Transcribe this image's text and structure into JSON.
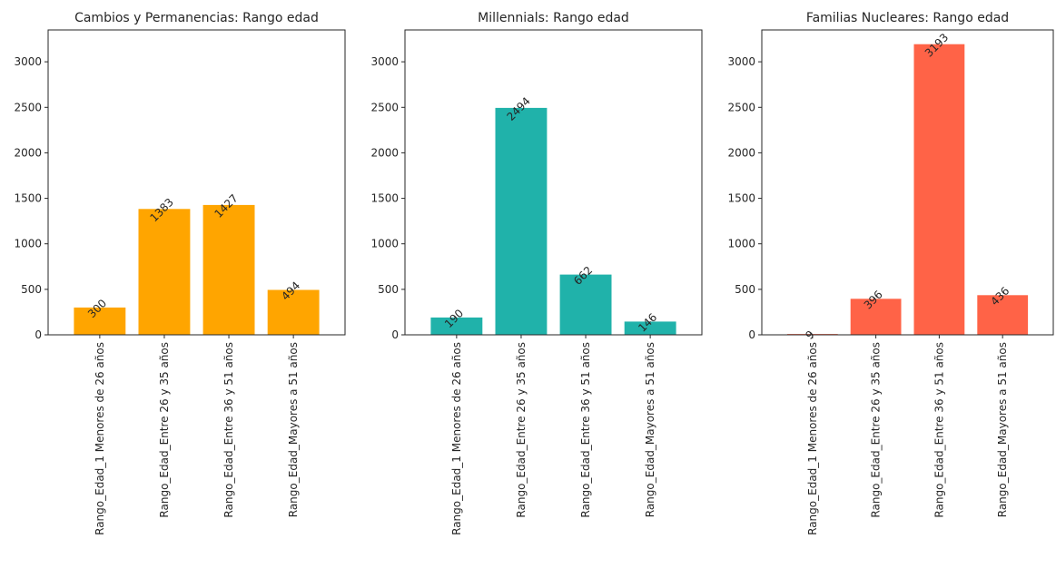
{
  "chart_data": [
    {
      "type": "bar",
      "title": "Cambios y Permanencias: Rango edad",
      "categories": [
        "Rango_Edad_1 Menores de 26 años",
        "Rango_Edad_Entre 26 y 35 años",
        "Rango_Edad_Entre 36 y 51 años",
        "Rango_Edad_Mayores a 51 años"
      ],
      "values": [
        300,
        1383,
        1427,
        494
      ],
      "data_labels": [
        "300",
        "1383",
        "1427",
        "494"
      ],
      "yticks": [
        "0",
        "500",
        "1000",
        "1500",
        "2000",
        "2500",
        "3000"
      ],
      "ylim": [
        0,
        3350
      ],
      "color": "#FFA500",
      "grid": false,
      "xlabel": "",
      "ylabel": ""
    },
    {
      "type": "bar",
      "title": "Millennials: Rango edad",
      "categories": [
        "Rango_Edad_1 Menores de 26 años",
        "Rango_Edad_Entre 26 y 35 años",
        "Rango_Edad_Entre 36 y 51 años",
        "Rango_Edad_Mayores a 51 años"
      ],
      "values": [
        190,
        2494,
        662,
        146
      ],
      "data_labels": [
        "190",
        "2494",
        "662",
        "146"
      ],
      "yticks": [
        "0",
        "500",
        "1000",
        "1500",
        "2000",
        "2500",
        "3000"
      ],
      "ylim": [
        0,
        3350
      ],
      "color": "#20B2AA",
      "grid": false,
      "xlabel": "",
      "ylabel": ""
    },
    {
      "type": "bar",
      "title": "Familias Nucleares: Rango edad",
      "categories": [
        "Rango_Edad_1 Menores de 26 años",
        "Rango_Edad_Entre 26 y 35 años",
        "Rango_Edad_Entre 36 y 51 años",
        "Rango_Edad_Mayores a 51 años"
      ],
      "values": [
        9,
        396,
        3193,
        436
      ],
      "data_labels": [
        "9",
        "396",
        "3193",
        "436"
      ],
      "yticks": [
        "0",
        "500",
        "1000",
        "1500",
        "2000",
        "2500",
        "3000"
      ],
      "ylim": [
        0,
        3350
      ],
      "color": "#FF6347",
      "grid": false,
      "xlabel": "",
      "ylabel": ""
    }
  ]
}
